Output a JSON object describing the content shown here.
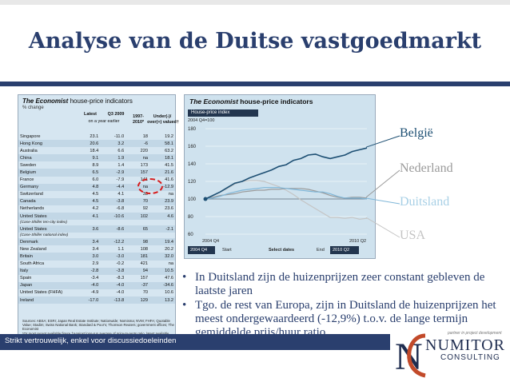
{
  "slide": {
    "title": "Analyse van de Duitse vastgoedmarkt",
    "footer": "Strikt vertrouwelijk, enkel voor discussiedoeleinden",
    "logo": {
      "tagline": "partner in project development",
      "name": "NUMITOR",
      "sub": "CONSULTING"
    }
  },
  "table": {
    "brand": "The Economist",
    "title_rest": " house-price indicators",
    "subtitle": "% change",
    "col_latest": "Latest",
    "col_q3": "Q3 2009",
    "col_1997": "1997-",
    "col_under": "Under(-)/",
    "col_ayear": "on a year earlier",
    "col_2010": "2010*",
    "col_over": "over(+) valued†",
    "rows": [
      [
        "Singapore",
        "23.1",
        "-11.0",
        "18",
        "19.2"
      ],
      [
        "Hong Kong",
        "20.6",
        "3.2",
        "-6",
        "58.1"
      ],
      [
        "Australia",
        "18.4",
        "6.6",
        "220",
        "63.2"
      ],
      [
        "China",
        "9.1",
        "1.9",
        "na",
        "18.1"
      ],
      [
        "Sweden",
        "8.9",
        "1.4",
        "173",
        "41.5"
      ],
      [
        "Belgium",
        "6.5",
        "-2.9",
        "157",
        "21.6"
      ],
      [
        "France",
        "6.0",
        "-7.9",
        "141",
        "41.6"
      ],
      [
        "Germany",
        "4.8",
        "-4.4",
        "na",
        "-12.9"
      ],
      [
        "Switzerland",
        "4.5",
        "4.1",
        "33",
        "na"
      ],
      [
        "Canada",
        "4.5",
        "-3.8",
        "70",
        "23.9"
      ],
      [
        "Netherlands",
        "4.2",
        "-6.8",
        "92",
        "23.6"
      ],
      [
        "United States",
        "4.1",
        "-10.6",
        "102",
        "4.6"
      ],
      [
        "(Case-Shiller ten-city index)",
        "",
        "",
        "",
        ""
      ],
      [
        "United States",
        "3.6",
        "-8.6",
        "65",
        "-2.1"
      ],
      [
        "(Case-Shiller national index)",
        "",
        "",
        "",
        ""
      ],
      [
        "Denmark",
        "3.4",
        "-12.2",
        "98",
        "19.4"
      ],
      [
        "New Zealand",
        "3.4",
        "1.1",
        "108",
        "20.2"
      ],
      [
        "Britain",
        "3.0",
        "-3.0",
        "181",
        "32.0"
      ],
      [
        "South Africa",
        "2.9",
        "-0.2",
        "421",
        "na"
      ],
      [
        "Italy",
        "-2.8",
        "-3.8",
        "94",
        "10.5"
      ],
      [
        "Spain",
        "-3.4",
        "-8.3",
        "157",
        "47.6"
      ],
      [
        "Japan",
        "-4.0",
        "-4.0",
        "-37",
        "-34.6"
      ],
      [
        "United States (FHFA)",
        "-4.9",
        "-4.0",
        "70",
        "10.6"
      ],
      [
        "Ireland",
        "-17.0",
        "-13.8",
        "129",
        "13.2"
      ]
    ],
    "sources": "Sources: ABSA; ESRI; Japan Real Estate Institute; Nationwide; Nomisma; NVM; FHFA; Quotable Value; Stadim; Swiss National Bank; Standard & Poor's; Thomson Reuters; government offices; The Economist",
    "note": "*Or most recent available figure  †Against long-run average of price-to-rents ratio, latest available rents data"
  },
  "chart": {
    "brand": "The Economist",
    "title_rest": " house-price indicators",
    "tab": "House-price index",
    "index_note": "2004 Q4=100",
    "start_label": "Start",
    "select_label": "Select dates",
    "end_label": "End",
    "start_value": "2004 Q4",
    "end_value": "2010 Q2",
    "series_labels": {
      "belgie": "België",
      "nederland": "Nederland",
      "duitsland": "Duitsland",
      "usa": "USA"
    }
  },
  "colors": {
    "title": "#2a3f6e",
    "belgie": "#1d4f73",
    "nederland": "#9a9a9a",
    "duitsland": "#a8d0e6",
    "usa": "#c4c4c4",
    "highlight": "#d61c1c"
  },
  "chart_data": {
    "type": "line",
    "title": "The Economist house-price indicators",
    "subtitle": "House-price index, 2004 Q4=100",
    "x": [
      "2004 Q4",
      "2005 Q1",
      "2005 Q2",
      "2005 Q3",
      "2005 Q4",
      "2006 Q1",
      "2006 Q2",
      "2006 Q3",
      "2006 Q4",
      "2007 Q1",
      "2007 Q2",
      "2007 Q3",
      "2007 Q4",
      "2008 Q1",
      "2008 Q2",
      "2008 Q3",
      "2008 Q4",
      "2009 Q1",
      "2009 Q2",
      "2009 Q3",
      "2009 Q4",
      "2010 Q1",
      "2010 Q2"
    ],
    "x_ticks": [
      "2004 Q4",
      "2010 Q2"
    ],
    "ylim": [
      60,
      180
    ],
    "y_ticks": [
      60,
      80,
      100,
      120,
      140,
      160,
      180
    ],
    "series": [
      {
        "name": "België",
        "values": [
          100,
          104,
          108,
          113,
          118,
          120,
          124,
          127,
          130,
          133,
          137,
          139,
          144,
          146,
          150,
          151,
          148,
          146,
          148,
          150,
          154,
          156,
          158
        ]
      },
      {
        "name": "Nederland",
        "values": [
          100,
          102,
          104,
          105,
          106,
          108,
          109,
          110,
          110,
          111,
          111,
          112,
          112,
          112,
          111,
          109,
          107,
          104,
          102,
          101,
          102,
          102,
          101
        ]
      },
      {
        "name": "Duitsland",
        "values": [
          100,
          101,
          103,
          106,
          108,
          110,
          111,
          112,
          113,
          113,
          113,
          112,
          111,
          110,
          109,
          108,
          108,
          106,
          103,
          101,
          101,
          101,
          100
        ]
      },
      {
        "name": "USA",
        "values": [
          100,
          104,
          108,
          112,
          117,
          120,
          121,
          121,
          120,
          117,
          114,
          110,
          105,
          99,
          94,
          89,
          84,
          79,
          79,
          78,
          79,
          77,
          78
        ]
      }
    ]
  }
}
